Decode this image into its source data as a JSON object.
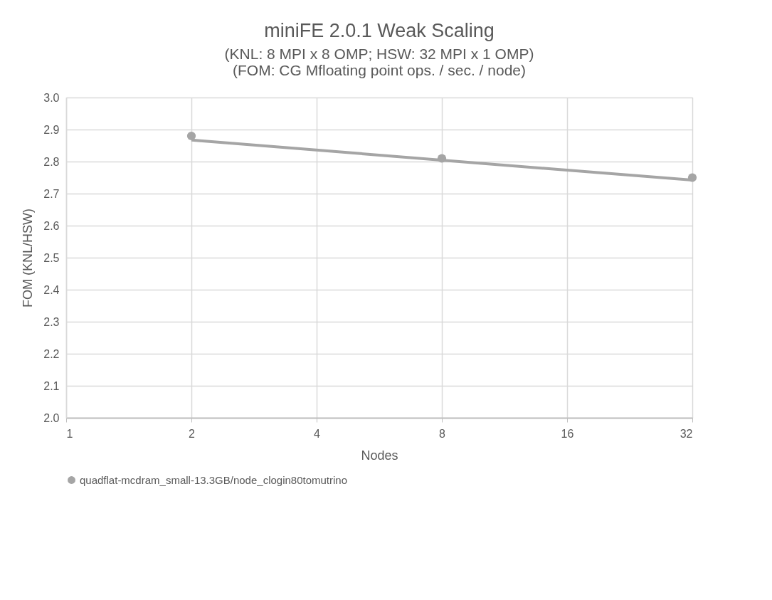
{
  "chart_data": {
    "type": "scatter",
    "title": "miniFE 2.0.1 Weak Scaling",
    "subtitle": "(KNL: 8 MPI x 8 OMP; HSW: 32 MPI x 1 OMP)\n(FOM: CG Mfloating point ops. / sec. / node)",
    "xlabel": "Nodes",
    "ylabel": "FOM (KNL/HSW)",
    "series": [
      {
        "name": "quadflat-mcdram_small-13.3GB/node_clogin80tomutrino",
        "color": "#a5a5a5",
        "x": [
          2,
          8,
          32
        ],
        "values": [
          2.88,
          2.81,
          2.75
        ]
      },
      {
        "color": "#a5a5a5",
        "type": "line",
        "marker": "none",
        "x": [
          2,
          32
        ],
        "values": [
          2.867,
          2.742
        ]
      }
    ],
    "log": "x",
    "xlim": [
      1,
      32
    ],
    "xticks": [
      1,
      2,
      4,
      8,
      16,
      32
    ],
    "ylim": [
      2.0,
      3.0
    ],
    "yticks": [
      {
        "value": 2.0,
        "label": "2.0"
      },
      {
        "value": 2.1,
        "label": "2.1"
      },
      {
        "value": 2.2,
        "label": "2.2"
      },
      {
        "value": 2.3,
        "label": "2.3"
      },
      {
        "value": 2.4,
        "label": "2.4"
      },
      {
        "value": 2.5,
        "label": "2.5"
      },
      {
        "value": 2.6,
        "label": "2.6"
      },
      {
        "value": 2.7,
        "label": "2.7"
      },
      {
        "value": 2.8,
        "label": "2.8"
      },
      {
        "value": 2.9,
        "label": "2.9"
      },
      {
        "value": 3.0,
        "label": "3.0"
      }
    ],
    "grid": true,
    "legend": "bottom",
    "marker": "circle"
  }
}
